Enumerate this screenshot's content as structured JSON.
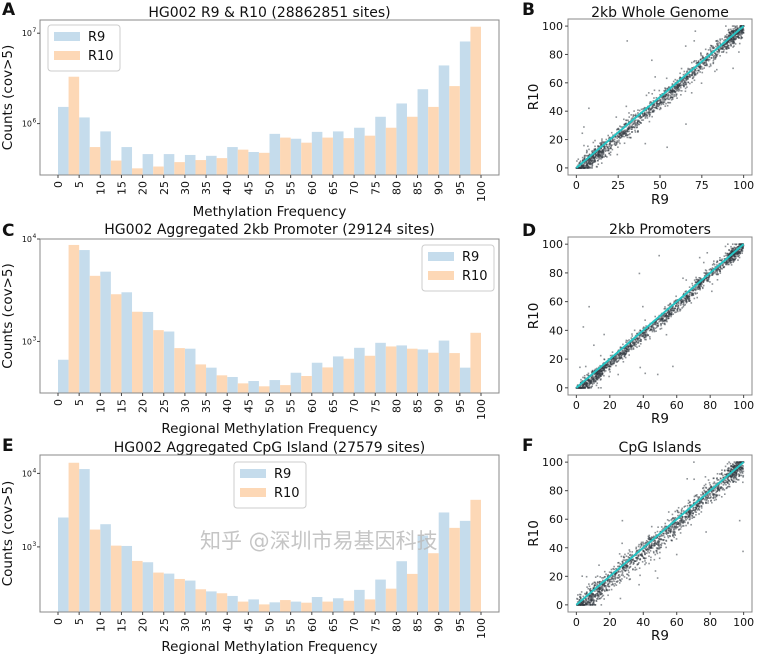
{
  "watermark": "知乎 @深圳市易基因科技",
  "colors": {
    "R9": "#c5dcec",
    "R10": "#fdd8b6",
    "scatter_points": "#333b41",
    "fit_line": "#27c3c3",
    "axes": "#888888"
  },
  "chart_data": [
    {
      "panel": "A",
      "type": "bar",
      "title": "HG002 R9 & R10 (28862851 sites)",
      "xlabel": "Methylation Frequency",
      "ylabel": "Counts (cov>5)",
      "xtick_labels": [
        "0",
        "5",
        "10",
        "15",
        "20",
        "25",
        "30",
        "35",
        "40",
        "45",
        "50",
        "55",
        "60",
        "65",
        "70",
        "75",
        "80",
        "85",
        "90",
        "95",
        "100"
      ],
      "yscale": "log",
      "ylim": [
        270000,
        14000000
      ],
      "yticks": [
        {
          "value": 1000000,
          "base": "10",
          "exp": "6"
        },
        {
          "value": 10000000,
          "base": "10",
          "exp": "7"
        }
      ],
      "legend": "top-left",
      "series": [
        {
          "name": "R9",
          "values": [
            1530000,
            1170000,
            820000,
            550000,
            460000,
            460000,
            450000,
            440000,
            550000,
            485000,
            770000,
            680000,
            810000,
            820000,
            900000,
            1190000,
            1670000,
            2400000,
            4400000,
            8100000
          ]
        },
        {
          "name": "R10",
          "values": [
            3300000,
            550000,
            390000,
            320000,
            335000,
            375000,
            395000,
            415000,
            515000,
            475000,
            700000,
            615000,
            700000,
            690000,
            735000,
            900000,
            1190000,
            1530000,
            2600000,
            11800000
          ]
        }
      ]
    },
    {
      "panel": "C",
      "type": "bar",
      "title": "HG002 Aggregated 2kb Promoter (29124 sites)",
      "xlabel": "Regional Methylation Frequency",
      "ylabel": "Counts (cov>5)",
      "xtick_labels": [
        "0",
        "5",
        "10",
        "15",
        "20",
        "25",
        "30",
        "35",
        "40",
        "45",
        "50",
        "55",
        "60",
        "65",
        "70",
        "75",
        "80",
        "85",
        "90",
        "95",
        "100"
      ],
      "yscale": "log",
      "ylim": [
        314,
        10000
      ],
      "yticks": [
        {
          "value": 1000,
          "base": "10",
          "exp": "3"
        },
        {
          "value": 10000,
          "base": "10",
          "exp": "4"
        }
      ],
      "legend": "top-right",
      "series": [
        {
          "name": "R9",
          "values": [
            663,
            7800,
            4800,
            3020,
            1940,
            1250,
            850,
            555,
            450,
            411,
            420,
            495,
            620,
            715,
            867,
            970,
            915,
            836,
            1020,
            555
          ]
        },
        {
          "name": "R10",
          "values": [
            8750,
            4370,
            2890,
            1950,
            1290,
            861,
            597,
            467,
            390,
            365,
            375,
            460,
            558,
            678,
            725,
            894,
            850,
            776,
            770,
            1215
          ]
        }
      ]
    },
    {
      "panel": "E",
      "type": "bar",
      "title": "HG002 Aggregated CpG Island (27579 sites)",
      "xlabel": "Regional Methylation Frequency",
      "ylabel": "Counts (cov>5)",
      "xtick_labels": [
        "0",
        "5",
        "10",
        "15",
        "20",
        "25",
        "30",
        "35",
        "40",
        "45",
        "50",
        "55",
        "60",
        "65",
        "70",
        "75",
        "80",
        "85",
        "90",
        "95",
        "100"
      ],
      "yscale": "log",
      "ylim": [
        130,
        17800
      ],
      "yticks": [
        {
          "value": 1000,
          "base": "10",
          "exp": "3"
        },
        {
          "value": 10000,
          "base": "10",
          "exp": "4"
        }
      ],
      "legend": "top-center",
      "series": [
        {
          "name": "R9",
          "values": [
            2510,
            11460,
            2036,
            1030,
            618,
            433,
            348,
            248,
            215,
            193,
            176,
            180,
            208,
            200,
            260,
            359,
            638,
            1430,
            2940,
            2260
          ]
        },
        {
          "name": "R10",
          "values": [
            13960,
            1720,
            1040,
            644,
            447,
            366,
            265,
            234,
            180,
            165,
            189,
            174,
            180,
            185,
            193,
            270,
            429,
            820,
            1815,
            4370
          ]
        }
      ]
    },
    {
      "panel": "B",
      "type": "scatter",
      "title": "2kb Whole Genome",
      "xlabel": "R9",
      "ylabel": "R10",
      "xlim": [
        -5,
        105
      ],
      "ylim": [
        -5,
        105
      ],
      "xticks": [
        "0",
        "25",
        "50",
        "75",
        "100"
      ],
      "yticks": [
        "0",
        "20",
        "40",
        "60",
        "80",
        "100"
      ],
      "fit_line": [
        [
          0,
          0
        ],
        [
          100,
          100
        ]
      ]
    },
    {
      "panel": "D",
      "type": "scatter",
      "title": "2kb Promoters",
      "xlabel": "R9",
      "ylabel": "R10",
      "xlim": [
        -5,
        105
      ],
      "ylim": [
        -5,
        105
      ],
      "xticks": [
        "0",
        "20",
        "40",
        "60",
        "80",
        "100"
      ],
      "yticks": [
        "0",
        "20",
        "40",
        "60",
        "80",
        "100"
      ],
      "fit_line": [
        [
          0,
          0
        ],
        [
          100,
          100
        ]
      ]
    },
    {
      "panel": "F",
      "type": "scatter",
      "title": "CpG Islands",
      "xlabel": "R9",
      "ylabel": "R10",
      "xlim": [
        -5,
        105
      ],
      "ylim": [
        -5,
        105
      ],
      "xticks": [
        "0",
        "20",
        "40",
        "60",
        "80",
        "100"
      ],
      "yticks": [
        "0",
        "20",
        "40",
        "60",
        "80",
        "100"
      ],
      "fit_line": [
        [
          0,
          0
        ],
        [
          100,
          100
        ]
      ]
    }
  ]
}
